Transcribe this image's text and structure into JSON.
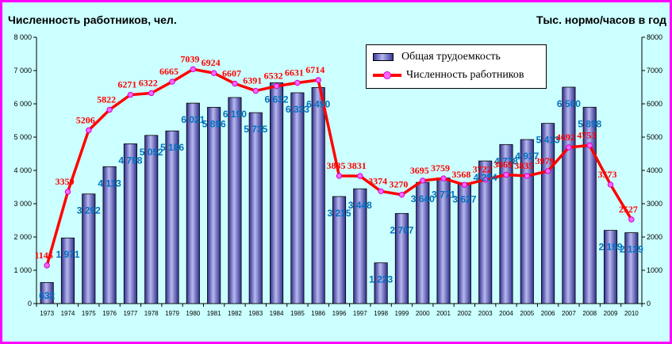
{
  "header": {
    "left_title": "Численность работников, чел.",
    "right_title": "Тыс. нормо/часов в год"
  },
  "legend": {
    "bar_label": "Общая трудоемкость",
    "line_label": "Численность работников"
  },
  "colors": {
    "background": "#ccffff",
    "border": "#ff00ff",
    "bar": "#6b6bcf",
    "line": "#ff0000",
    "marker": "#ff66ff",
    "bar_label": "#0070c0",
    "line_label": "#ff0000"
  },
  "chart_data": {
    "type": "bar",
    "categories": [
      "1973",
      "1974",
      "1975",
      "1976",
      "1977",
      "1978",
      "1979",
      "1980",
      "1981",
      "1982",
      "1983",
      "1984",
      "1985",
      "1986",
      "1996",
      "1997",
      "1998",
      "1999",
      "2000",
      "2001",
      "2002",
      "2003",
      "2004",
      "2005",
      "2006",
      "2007",
      "2008",
      "2009",
      "2010"
    ],
    "y_left_ticks": [
      "0",
      "1 000",
      "2 000",
      "3 000",
      "4 000",
      "5 000",
      "6 000",
      "7 000",
      "8 000"
    ],
    "y_right_ticks": [
      "0",
      "1000",
      "2000",
      "3000",
      "4000",
      "5000",
      "6000",
      "7000",
      "8000"
    ],
    "ylim": [
      0,
      8000
    ],
    "grid": false,
    "legend_position": "top-center",
    "series": [
      {
        "name": "Общая трудоемкость",
        "type": "bar",
        "values": [
          632,
          1971,
          3292,
          4113,
          4798,
          5052,
          5186,
          6021,
          5896,
          6190,
          5735,
          6632,
          6333,
          6490,
          3215,
          3448,
          1223,
          2707,
          3640,
          3771,
          3627,
          4284,
          4778,
          4927,
          5413,
          6500,
          5898,
          2199,
          2129
        ],
        "labels": [
          "632",
          "1 971",
          "3 292",
          "4 113",
          "4 798",
          "5 052",
          "5 186",
          "6 021",
          "5 896",
          "6 190",
          "5 735",
          "6 632",
          "6 333",
          "6 490",
          "3 215",
          "3 448",
          "1 223",
          "2 707",
          "3 640",
          "3 771",
          "3 627",
          "4 284",
          "4 778",
          "4 927",
          "5 413",
          "6 500",
          "5 898",
          "2 199",
          "2 129"
        ]
      },
      {
        "name": "Численность работников",
        "type": "line",
        "values": [
          1146,
          3359,
          5206,
          5822,
          6271,
          6322,
          6665,
          7039,
          6924,
          6607,
          6391,
          6532,
          6631,
          6714,
          3835,
          3831,
          3374,
          3270,
          3695,
          3759,
          3568,
          3722,
          3869,
          3835,
          3979,
          4692,
          4753,
          3573,
          2527
        ],
        "labels": [
          "1146",
          "3359",
          "5206",
          "5822",
          "6271",
          "6322",
          "6665",
          "7039",
          "6924",
          "6607",
          "6391",
          "6532",
          "6631",
          "6714",
          "3835",
          "3831",
          "3374",
          "3270",
          "3695",
          "3759",
          "3568",
          "3722",
          "3869",
          "3835",
          "3979",
          "4692",
          "4753",
          "3573",
          "2527"
        ]
      }
    ]
  }
}
